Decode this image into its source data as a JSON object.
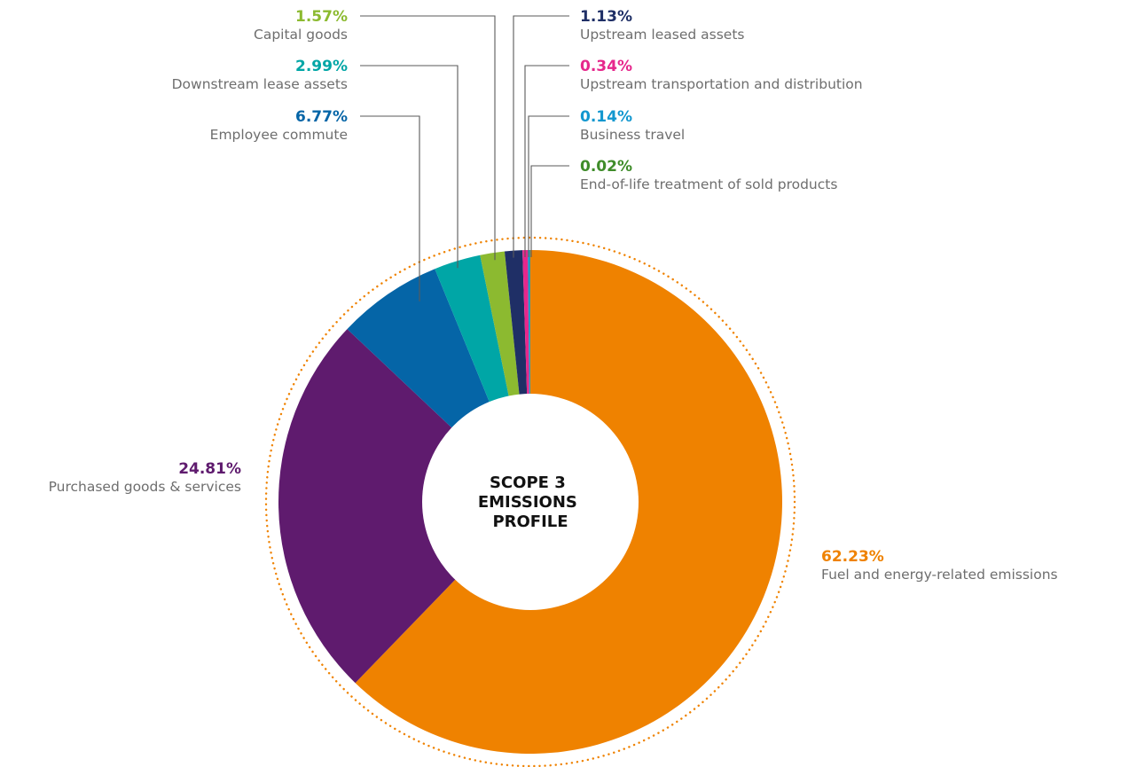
{
  "chart_data": {
    "type": "pie",
    "title": "SCOPE 3 EMISSIONS PROFILE",
    "title_lines": [
      "SCOPE 3",
      "EMISSIONS",
      "PROFILE"
    ],
    "style": "donut",
    "slices": [
      {
        "label": "Fuel and energy-related emissions",
        "value": 62.23,
        "value_label": "62.23%",
        "color": "#ef8200"
      },
      {
        "label": "Purchased goods & services",
        "value": 24.81,
        "value_label": "24.81%",
        "color": "#5f1b6e"
      },
      {
        "label": "Employee commute",
        "value": 6.77,
        "value_label": "6.77%",
        "color": "#0565a7"
      },
      {
        "label": "Downstream lease assets",
        "value": 2.99,
        "value_label": "2.99%",
        "color": "#00a6a6"
      },
      {
        "label": "Capital goods",
        "value": 1.57,
        "value_label": "1.57%",
        "color": "#8cba30"
      },
      {
        "label": "Upstream leased assets",
        "value": 1.13,
        "value_label": "1.13%",
        "color": "#1f2f66"
      },
      {
        "label": "Upstream transportation and distribution",
        "value": 0.34,
        "value_label": "0.34%",
        "color": "#e6278c"
      },
      {
        "label": "Business travel",
        "value": 0.14,
        "value_label": "0.14%",
        "color": "#1297cf"
      },
      {
        "label": "End-of-life treatment of sold products",
        "value": 0.02,
        "value_label": "0.02%",
        "color": "#3f8c2a"
      }
    ],
    "dotted_ring_color": "#ef8200",
    "legend": "none"
  }
}
